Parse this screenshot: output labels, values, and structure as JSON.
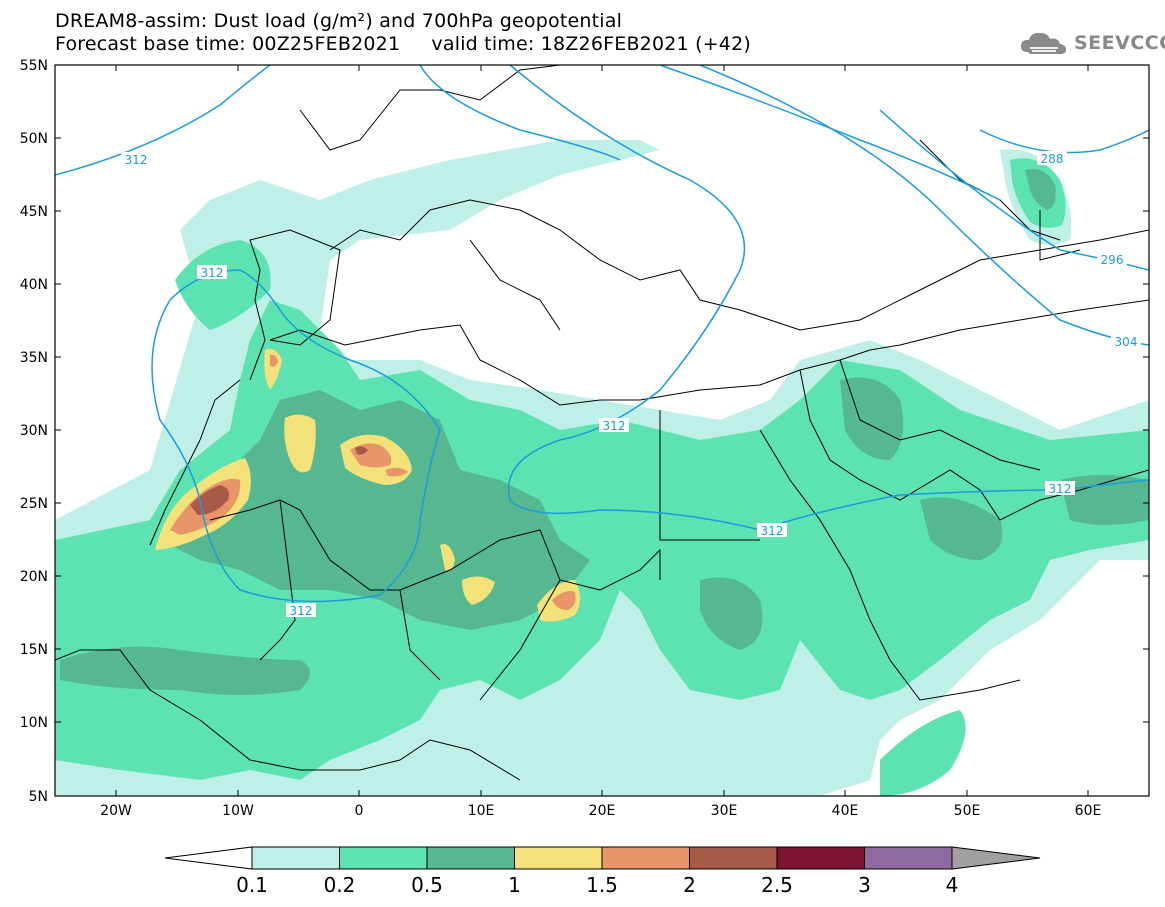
{
  "header": {
    "title_line1": "DREAM8-assim: Dust load (g/m²) and 700hPa geopotential",
    "title_line2": "Forecast base time: 00Z25FEB2021     valid time: 18Z26FEB2021 (+42)",
    "logo_text": "SEEVCCC"
  },
  "map": {
    "lat_labels": [
      "55N",
      "50N",
      "45N",
      "40N",
      "35N",
      "30N",
      "25N",
      "20N",
      "15N",
      "10N",
      "5N"
    ],
    "lon_labels": [
      "20W",
      "10W",
      "0",
      "10E",
      "20E",
      "30E",
      "40E",
      "50E",
      "60E"
    ],
    "contour_labels": [
      "312",
      "312",
      "312",
      "312",
      "312",
      "312",
      "288",
      "296",
      "304"
    ]
  },
  "colorbar": {
    "levels": [
      "0.1",
      "0.2",
      "0.5",
      "1",
      "1.5",
      "2",
      "2.5",
      "3",
      "4"
    ],
    "colors": [
      "#bff0e8",
      "#5de2b1",
      "#55b891",
      "#f3e27a",
      "#e8956a",
      "#a85a48",
      "#7c1434",
      "#8f6aa0"
    ],
    "under_color": "#ffffff",
    "over_color": "#a0a0a0"
  },
  "colors": {
    "contour": "#1a9ce0",
    "coast": "#000000"
  }
}
